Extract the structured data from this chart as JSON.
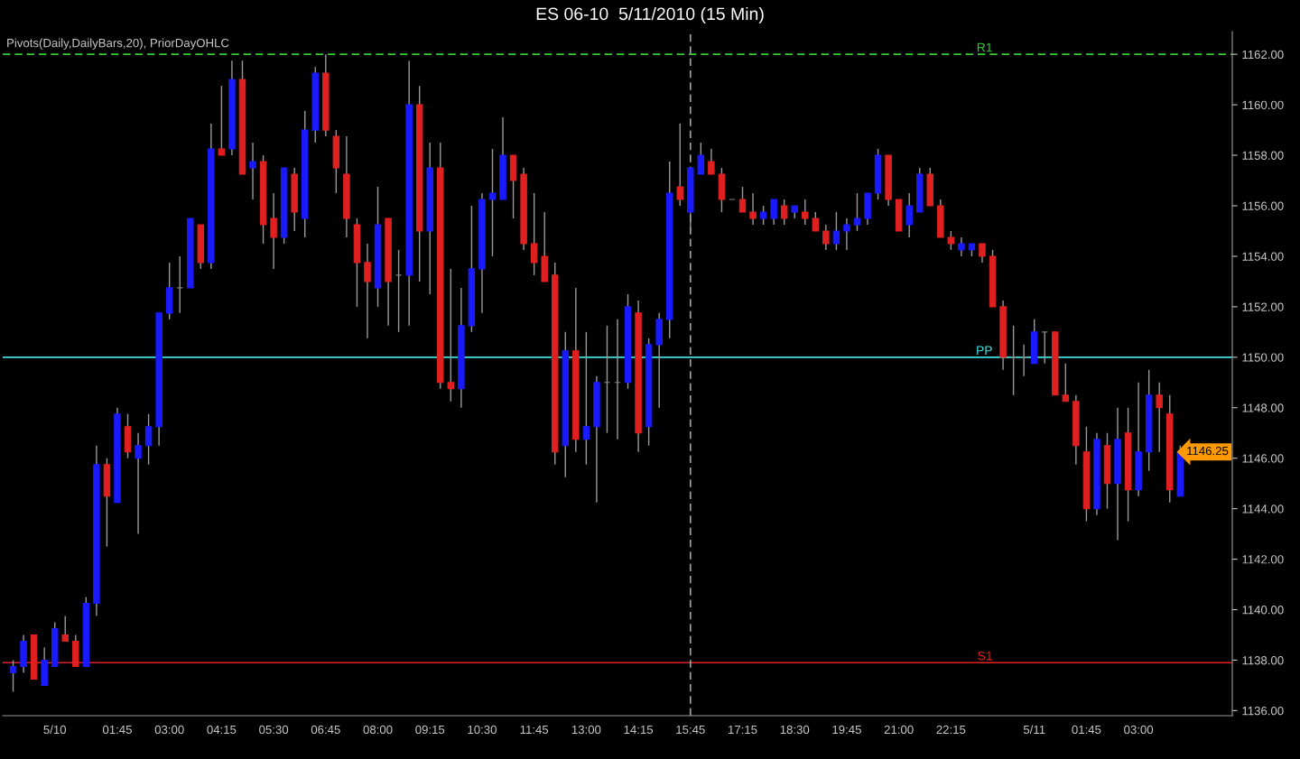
{
  "chart_data": {
    "type": "candlestick",
    "title": "ES 06-10  5/11/2010 (15 Min)",
    "categories": [
      null,
      null,
      null,
      null,
      "5/10",
      null,
      null,
      null,
      null,
      null,
      "01:45",
      null,
      null,
      null,
      null,
      "03:00",
      null,
      null,
      null,
      null,
      "04:15",
      null,
      null,
      null,
      null,
      "05:30",
      null,
      null,
      null,
      null,
      "06:45",
      null,
      null,
      null,
      null,
      "08:00",
      null,
      null,
      null,
      null,
      "09:15",
      null,
      null,
      null,
      null,
      "10:30",
      null,
      null,
      null,
      null,
      "11:45",
      null,
      null,
      null,
      null,
      "13:00",
      null,
      null,
      null,
      null,
      "14:15",
      null,
      null,
      null,
      null,
      "15:45",
      null,
      null,
      null,
      null,
      "17:15",
      null,
      null,
      null,
      null,
      "18:30",
      null,
      null,
      null,
      null,
      "19:45",
      null,
      null,
      null,
      null,
      "21:00",
      null,
      null,
      null,
      null,
      "22:15",
      null,
      null,
      null,
      null,
      null,
      null,
      null,
      "5/11",
      null,
      null,
      null,
      null,
      "01:45",
      null,
      null,
      null,
      null,
      "03:00",
      null,
      null,
      null,
      null
    ],
    "ohlc": [
      [
        1137.5,
        1138,
        1136.75,
        1137.75
      ],
      [
        1137.75,
        1139,
        1137.5,
        1138.75
      ],
      [
        1139,
        1139,
        1137.25,
        1137.25
      ],
      [
        1137,
        1138.5,
        1137,
        1138
      ],
      [
        1137.75,
        1139.5,
        1137.75,
        1139.25
      ],
      [
        1139,
        1139.75,
        1138.75,
        1138.75
      ],
      [
        1138.75,
        1139,
        1137.75,
        1137.75
      ],
      [
        1137.75,
        1140.5,
        1137.75,
        1140.25
      ],
      [
        1140.25,
        1146.5,
        1139.75,
        1145.75
      ],
      [
        1145.75,
        1146,
        1142.5,
        1144.5
      ],
      [
        1144.25,
        1148,
        1144.25,
        1147.75
      ],
      [
        1147.25,
        1147.75,
        1146,
        1146.25
      ],
      [
        1146,
        1147,
        1143,
        1146.5
      ],
      [
        1146.5,
        1147.75,
        1145.75,
        1147.25
      ],
      [
        1147.25,
        1151.75,
        1146.5,
        1151.75
      ],
      [
        1151.75,
        1153.75,
        1151.5,
        1152.75
      ],
      [
        1152.75,
        1154,
        1151.75,
        1152.75
      ],
      [
        1152.75,
        1155.5,
        1152.75,
        1155.5
      ],
      [
        1155.25,
        1155.25,
        1153.5,
        1153.75
      ],
      [
        1153.75,
        1159.25,
        1153.5,
        1158.25
      ],
      [
        1158.25,
        1160.75,
        1158,
        1158
      ],
      [
        1158.25,
        1161.75,
        1158,
        1161
      ],
      [
        1161,
        1161.75,
        1157.25,
        1157.25
      ],
      [
        1157.5,
        1158.5,
        1156.25,
        1157.75
      ],
      [
        1157.75,
        1158,
        1154.5,
        1155.25
      ],
      [
        1155.5,
        1156.5,
        1153.5,
        1154.75
      ],
      [
        1154.75,
        1157.5,
        1154.5,
        1157.5
      ],
      [
        1157.25,
        1157.5,
        1155,
        1155.75
      ],
      [
        1155.5,
        1159.75,
        1154.75,
        1159
      ],
      [
        1159,
        1161.5,
        1158.5,
        1161.25
      ],
      [
        1161.25,
        1162,
        1158.75,
        1159
      ],
      [
        1158.75,
        1159,
        1156.5,
        1157.5
      ],
      [
        1157.25,
        1158.75,
        1154.75,
        1155.5
      ],
      [
        1155.25,
        1155.5,
        1152,
        1153.75
      ],
      [
        1153.75,
        1154.5,
        1150.75,
        1153
      ],
      [
        1152.75,
        1156.75,
        1152,
        1155.25
      ],
      [
        1155.5,
        1155.5,
        1151.25,
        1153
      ],
      [
        1153.25,
        1154.25,
        1151,
        1153.25
      ],
      [
        1153.25,
        1161.75,
        1151.25,
        1160
      ],
      [
        1160,
        1160.75,
        1153,
        1155
      ],
      [
        1155,
        1158.5,
        1152.5,
        1157.5
      ],
      [
        1157.5,
        1158.5,
        1148.75,
        1149
      ],
      [
        1149,
        1153.5,
        1148.25,
        1148.75
      ],
      [
        1148.75,
        1152.75,
        1148,
        1151.25
      ],
      [
        1151.25,
        1156,
        1151,
        1153.5
      ],
      [
        1153.5,
        1156.5,
        1151.75,
        1156.25
      ],
      [
        1156.25,
        1158.25,
        1154,
        1156.5
      ],
      [
        1156.25,
        1159.5,
        1156.25,
        1158
      ],
      [
        1158,
        1158,
        1155.5,
        1157
      ],
      [
        1157.25,
        1157.5,
        1154.25,
        1154.5
      ],
      [
        1154.5,
        1156.5,
        1153.25,
        1153.75
      ],
      [
        1154,
        1155.75,
        1153,
        1153
      ],
      [
        1153.25,
        1153.75,
        1145.75,
        1146.25
      ],
      [
        1146.5,
        1151,
        1145.25,
        1150.25
      ],
      [
        1150.25,
        1152.75,
        1146.25,
        1146.75
      ],
      [
        1146.75,
        1151,
        1145.75,
        1147.25
      ],
      [
        1147.25,
        1149.25,
        1144.25,
        1149
      ],
      [
        1149,
        1151.25,
        1147,
        1149
      ],
      [
        1149,
        1151.5,
        1146.75,
        1149
      ],
      [
        1149,
        1152.5,
        1148.75,
        1152
      ],
      [
        1151.75,
        1152.25,
        1146.25,
        1147
      ],
      [
        1147.25,
        1150.75,
        1146.5,
        1150.5
      ],
      [
        1150.5,
        1151.75,
        1148,
        1151.5
      ],
      [
        1151.5,
        1157.75,
        1150.75,
        1156.5
      ],
      [
        1156.75,
        1159.25,
        1156,
        1156.25
      ],
      [
        1155.75,
        1157.5,
        1155,
        1157.5
      ],
      [
        1157.25,
        1158.5,
        1157.25,
        1158
      ],
      [
        1157.75,
        1158.25,
        1157.25,
        1157.25
      ],
      [
        1157.25,
        1157.5,
        1155.75,
        1156.25
      ],
      [
        1156.25,
        1156.25,
        1156.25,
        1156.25
      ],
      [
        1156.25,
        1156.75,
        1155.75,
        1155.75
      ],
      [
        1155.75,
        1156.5,
        1155.25,
        1155.5
      ],
      [
        1155.5,
        1156,
        1155.25,
        1155.75
      ],
      [
        1155.5,
        1156.25,
        1155.25,
        1156.25
      ],
      [
        1156,
        1156.25,
        1155.25,
        1155.5
      ],
      [
        1155.75,
        1156,
        1155.5,
        1156
      ],
      [
        1155.75,
        1156.25,
        1155.25,
        1155.5
      ],
      [
        1155.5,
        1155.75,
        1155,
        1155
      ],
      [
        1155,
        1155.25,
        1154.25,
        1154.5
      ],
      [
        1154.5,
        1155.75,
        1154.25,
        1155
      ],
      [
        1155,
        1155.5,
        1154.25,
        1155.25
      ],
      [
        1155.25,
        1156.5,
        1155,
        1155.5
      ],
      [
        1155.5,
        1156.5,
        1155.25,
        1156.5
      ],
      [
        1156.5,
        1158.25,
        1156.25,
        1158
      ],
      [
        1158,
        1158,
        1156,
        1156.25
      ],
      [
        1156.25,
        1156.25,
        1155,
        1155
      ],
      [
        1155.25,
        1156.5,
        1154.75,
        1156
      ],
      [
        1155.75,
        1157.5,
        1155.75,
        1157.25
      ],
      [
        1157.25,
        1157.5,
        1156,
        1156
      ],
      [
        1156,
        1156.25,
        1154.75,
        1154.75
      ],
      [
        1154.75,
        1155,
        1154.25,
        1154.5
      ],
      [
        1154.25,
        1154.75,
        1154,
        1154.5
      ],
      [
        1154.25,
        1154.5,
        1154,
        1154.5
      ],
      [
        1154.5,
        1154.5,
        1153.75,
        1154
      ],
      [
        1154,
        1154.25,
        1152,
        1152
      ],
      [
        1152,
        1152.25,
        1149.5,
        1150
      ],
      [
        1150,
        1151.25,
        1148.5,
        1150
      ],
      [
        1150,
        1150.5,
        1149.25,
        1150
      ],
      [
        1149.75,
        1151.5,
        1149.75,
        1151
      ],
      [
        1151,
        1151,
        1149.75,
        1151
      ],
      [
        1151,
        1151,
        1148.5,
        1148.5
      ],
      [
        1148.5,
        1149.75,
        1148.25,
        1148.25
      ],
      [
        1148.25,
        1148.5,
        1145.75,
        1146.5
      ],
      [
        1146.25,
        1147.25,
        1143.5,
        1144
      ],
      [
        1144,
        1147,
        1143.75,
        1146.75
      ],
      [
        1146.5,
        1147,
        1144,
        1145
      ],
      [
        1145,
        1148,
        1142.75,
        1146.75
      ],
      [
        1147,
        1148,
        1143.5,
        1144.75
      ],
      [
        1144.75,
        1149,
        1144.5,
        1146.25
      ],
      [
        1146.25,
        1149.5,
        1145.5,
        1148.5
      ],
      [
        1148.5,
        1149,
        1146.25,
        1148
      ],
      [
        1147.75,
        1148.5,
        1144.25,
        1144.75
      ],
      [
        1144.5,
        1146.5,
        1144.5,
        1146.25
      ]
    ],
    "colors": [
      "#1a1aff",
      "#1a1aff",
      "#e02020",
      "#1a1aff",
      "#1a1aff",
      "#e02020",
      "#e02020",
      "#1a1aff",
      "#1a1aff",
      "#e02020",
      "#1a1aff",
      "#e02020",
      "#1a1aff",
      "#1a1aff",
      "#1a1aff",
      "#1a1aff",
      "#808080",
      "#1a1aff",
      "#e02020",
      "#1a1aff",
      "#e02020",
      "#1a1aff",
      "#e02020",
      "#1a1aff",
      "#e02020",
      "#e02020",
      "#1a1aff",
      "#e02020",
      "#1a1aff",
      "#1a1aff",
      "#e02020",
      "#e02020",
      "#e02020",
      "#e02020",
      "#e02020",
      "#1a1aff",
      "#e02020",
      "#808080",
      "#1a1aff",
      "#e02020",
      "#1a1aff",
      "#e02020",
      "#e02020",
      "#1a1aff",
      "#1a1aff",
      "#1a1aff",
      "#1a1aff",
      "#1a1aff",
      "#e02020",
      "#e02020",
      "#e02020",
      "#e02020",
      "#e02020",
      "#1a1aff",
      "#e02020",
      "#1a1aff",
      "#1a1aff",
      "#808080",
      "#808080",
      "#1a1aff",
      "#e02020",
      "#1a1aff",
      "#1a1aff",
      "#1a1aff",
      "#e02020",
      "#1a1aff",
      "#1a1aff",
      "#e02020",
      "#e02020",
      "#808080",
      "#e02020",
      "#e02020",
      "#1a1aff",
      "#1a1aff",
      "#e02020",
      "#1a1aff",
      "#e02020",
      "#e02020",
      "#e02020",
      "#1a1aff",
      "#1a1aff",
      "#1a1aff",
      "#1a1aff",
      "#1a1aff",
      "#e02020",
      "#e02020",
      "#1a1aff",
      "#1a1aff",
      "#e02020",
      "#e02020",
      "#e02020",
      "#1a1aff",
      "#1a1aff",
      "#e02020",
      "#e02020",
      "#e02020",
      "#808080",
      "#808080",
      "#1a1aff",
      "#808080",
      "#e02020",
      "#e02020",
      "#e02020",
      "#e02020",
      "#1a1aff",
      "#e02020",
      "#1a1aff",
      "#e02020",
      "#1a1aff",
      "#1a1aff",
      "#e02020",
      "#e02020",
      "#1a1aff"
    ],
    "ylim": [
      1135.8,
      1162.9
    ],
    "yticks": [
      {
        "value": 1136,
        "label": "1136.00"
      },
      {
        "value": 1138,
        "label": "1138.00"
      },
      {
        "value": 1140,
        "label": "1140.00"
      },
      {
        "value": 1142,
        "label": "1142.00"
      },
      {
        "value": 1144,
        "label": "1144.00"
      },
      {
        "value": 1146,
        "label": "1146.00"
      },
      {
        "value": 1148,
        "label": "1148.00"
      },
      {
        "value": 1150,
        "label": "1150.00"
      },
      {
        "value": 1152,
        "label": "1152.00"
      },
      {
        "value": 1154,
        "label": "1154.00"
      },
      {
        "value": 1156,
        "label": "1156.00"
      },
      {
        "value": 1158,
        "label": "1158.00"
      },
      {
        "value": 1160,
        "label": "1160.00"
      },
      {
        "value": 1162,
        "label": "1162.00"
      }
    ],
    "ref_lines": [
      {
        "axis": "y",
        "value": 1162,
        "label": "R1",
        "color": "#33cc33",
        "line_style": "dashed"
      },
      {
        "axis": "y",
        "value": 1150,
        "label": "PP",
        "color": "#40e0e0",
        "line_style": "solid"
      },
      {
        "axis": "y",
        "value": 1137.9,
        "label": "S1",
        "color": "#e02020",
        "line_style": "solid"
      },
      {
        "axis": "x",
        "value": "15:45",
        "color": "#a0a0a0",
        "line_style": "dashed"
      }
    ],
    "annotations": [
      "Pivots(Daily,DailyBars,20), PriorDayOHLC",
      "1146.25"
    ],
    "grid": false
  }
}
